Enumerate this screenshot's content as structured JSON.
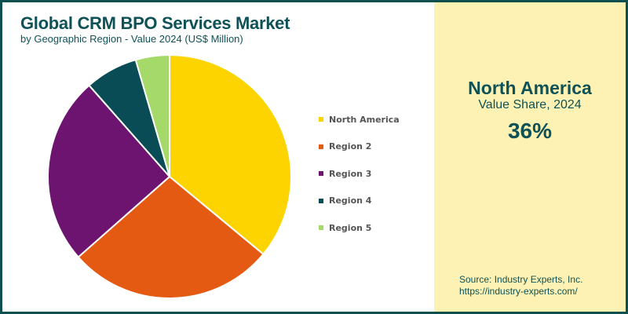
{
  "chart_data": {
    "type": "pie",
    "title": "Global CRM BPO Services Market",
    "subtitle": "by Geographic Region - Value 2024 (US$ Million)",
    "categories": [
      "North America",
      "Region 2",
      "Region 3",
      "Region 4",
      "Region 5"
    ],
    "values": [
      36,
      27.5,
      25,
      7,
      4.5
    ],
    "colors": [
      "#fdd400",
      "#e45a12",
      "#6d1470",
      "#0a4c55",
      "#a5d96a"
    ],
    "legend_position": "right"
  },
  "panel": {
    "region": "North America",
    "label": "Value Share, 2024",
    "value": "36%",
    "source": "Source: Industry Experts, Inc.",
    "url": "https://industry-experts.com/"
  }
}
